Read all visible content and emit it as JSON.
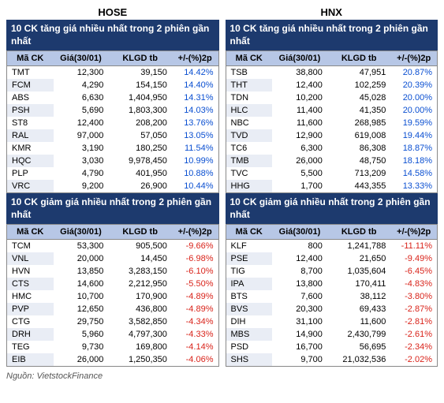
{
  "columns": {
    "code": "Mã CK",
    "price": "Giá(30/01)",
    "volume": "KLGD tb",
    "pct": "+/-(%)2p"
  },
  "hose": {
    "title": "HOSE",
    "gainers_title": "10 CK tăng giá nhiều nhất trong 2 phiên gần nhất",
    "losers_title": "10 CK giảm giá nhiều nhất trong 2 phiên gần nhất",
    "gainers": [
      {
        "code": "TMT",
        "price": "12,300",
        "vol": "39,150",
        "pct": "14.42%"
      },
      {
        "code": "FCM",
        "price": "4,290",
        "vol": "154,150",
        "pct": "14.40%"
      },
      {
        "code": "ABS",
        "price": "6,630",
        "vol": "1,404,950",
        "pct": "14.31%"
      },
      {
        "code": "PSH",
        "price": "5,690",
        "vol": "1,803,300",
        "pct": "14.03%"
      },
      {
        "code": "ST8",
        "price": "12,400",
        "vol": "208,200",
        "pct": "13.76%"
      },
      {
        "code": "RAL",
        "price": "97,000",
        "vol": "57,050",
        "pct": "13.05%"
      },
      {
        "code": "KMR",
        "price": "3,190",
        "vol": "180,250",
        "pct": "11.54%"
      },
      {
        "code": "HQC",
        "price": "3,030",
        "vol": "9,978,450",
        "pct": "10.99%"
      },
      {
        "code": "PLP",
        "price": "4,790",
        "vol": "401,950",
        "pct": "10.88%"
      },
      {
        "code": "VRC",
        "price": "9,200",
        "vol": "26,900",
        "pct": "10.44%"
      }
    ],
    "losers": [
      {
        "code": "TCM",
        "price": "53,300",
        "vol": "905,500",
        "pct": "-9.66%"
      },
      {
        "code": "VNL",
        "price": "20,000",
        "vol": "14,450",
        "pct": "-6.98%"
      },
      {
        "code": "HVN",
        "price": "13,850",
        "vol": "3,283,150",
        "pct": "-6.10%"
      },
      {
        "code": "CTS",
        "price": "14,600",
        "vol": "2,212,950",
        "pct": "-5.50%"
      },
      {
        "code": "HMC",
        "price": "10,700",
        "vol": "170,900",
        "pct": "-4.89%"
      },
      {
        "code": "PVP",
        "price": "12,650",
        "vol": "436,800",
        "pct": "-4.89%"
      },
      {
        "code": "CTG",
        "price": "29,750",
        "vol": "3,582,850",
        "pct": "-4.34%"
      },
      {
        "code": "DRH",
        "price": "5,960",
        "vol": "4,797,300",
        "pct": "-4.33%"
      },
      {
        "code": "TEG",
        "price": "9,730",
        "vol": "169,800",
        "pct": "-4.14%"
      },
      {
        "code": "EIB",
        "price": "26,000",
        "vol": "1,250,350",
        "pct": "-4.06%"
      }
    ]
  },
  "hnx": {
    "title": "HNX",
    "gainers_title": "10 CK tăng giá nhiều nhất trong 2 phiên gần nhất",
    "losers_title": "10 CK giảm giá nhiều nhất trong 2 phiên gần nhất",
    "gainers": [
      {
        "code": "TSB",
        "price": "38,800",
        "vol": "47,951",
        "pct": "20.87%"
      },
      {
        "code": "THT",
        "price": "12,400",
        "vol": "102,259",
        "pct": "20.39%"
      },
      {
        "code": "TDN",
        "price": "10,200",
        "vol": "45,028",
        "pct": "20.00%"
      },
      {
        "code": "HLC",
        "price": "11,400",
        "vol": "41,350",
        "pct": "20.00%"
      },
      {
        "code": "NBC",
        "price": "11,600",
        "vol": "268,985",
        "pct": "19.59%"
      },
      {
        "code": "TVD",
        "price": "12,900",
        "vol": "619,008",
        "pct": "19.44%"
      },
      {
        "code": "TC6",
        "price": "6,300",
        "vol": "86,308",
        "pct": "18.87%"
      },
      {
        "code": "TMB",
        "price": "26,000",
        "vol": "48,750",
        "pct": "18.18%"
      },
      {
        "code": "TVC",
        "price": "5,500",
        "vol": "713,209",
        "pct": "14.58%"
      },
      {
        "code": "HHG",
        "price": "1,700",
        "vol": "443,355",
        "pct": "13.33%"
      }
    ],
    "losers": [
      {
        "code": "KLF",
        "price": "800",
        "vol": "1,241,788",
        "pct": "-11.11%"
      },
      {
        "code": "PSE",
        "price": "12,400",
        "vol": "21,650",
        "pct": "-9.49%"
      },
      {
        "code": "TIG",
        "price": "8,700",
        "vol": "1,035,604",
        "pct": "-6.45%"
      },
      {
        "code": "IPA",
        "price": "13,800",
        "vol": "170,411",
        "pct": "-4.83%"
      },
      {
        "code": "BTS",
        "price": "7,600",
        "vol": "38,112",
        "pct": "-3.80%"
      },
      {
        "code": "BVS",
        "price": "20,300",
        "vol": "69,433",
        "pct": "-2.87%"
      },
      {
        "code": "DIH",
        "price": "31,100",
        "vol": "11,600",
        "pct": "-2.81%"
      },
      {
        "code": "MBS",
        "price": "14,900",
        "vol": "2,430,799",
        "pct": "-2.61%"
      },
      {
        "code": "PSD",
        "price": "16,700",
        "vol": "56,695",
        "pct": "-2.34%"
      },
      {
        "code": "SHS",
        "price": "9,700",
        "vol": "21,032,536",
        "pct": "-2.02%"
      }
    ]
  },
  "footer": "Nguồn: VietstockFinance"
}
